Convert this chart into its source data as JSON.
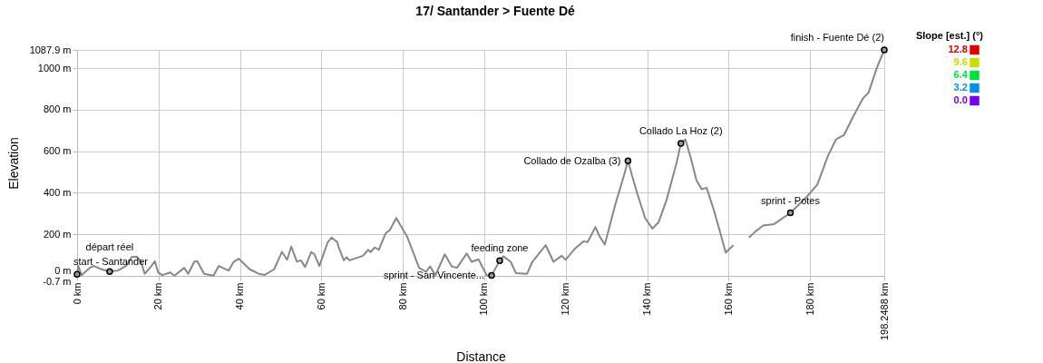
{
  "chart_data": {
    "type": "line",
    "title": "17/ Santander > Fuente Dé",
    "xlabel": "Distance",
    "ylabel": "Elevation",
    "clabel": "Slope [est.] (°)",
    "cticks": [
      {
        "value": 0,
        "label": "0.0"
      },
      3.2,
      6.4,
      9.6,
      12.8
    ],
    "colors": [
      "#7700ee",
      "#0090e8",
      "#00e040",
      "#c8e000",
      "#e00000"
    ],
    "xlim": [
      0,
      198.2488
    ],
    "ylim": [
      -0.7,
      1087.9
    ],
    "xticks": [
      {
        "value": 0,
        "label": "0 km"
      },
      {
        "value": 20,
        "label": "20 km"
      },
      {
        "value": 40,
        "label": "40 km"
      },
      {
        "value": 60,
        "label": "60 km"
      },
      {
        "value": 80,
        "label": "80 km"
      },
      {
        "value": 100,
        "label": "100 km"
      },
      {
        "value": 120,
        "label": "120 km"
      },
      {
        "value": 140,
        "label": "140 km"
      },
      {
        "value": 160,
        "label": "160 km"
      },
      {
        "value": 180,
        "label": "180 km"
      },
      {
        "value": 198.2488,
        "label": "198.2488 km"
      }
    ],
    "yticks": [
      {
        "value": -0.7,
        "label": "-0.7 m"
      },
      {
        "value": 0,
        "label": "0 m"
      },
      {
        "value": 200,
        "label": "200 m"
      },
      {
        "value": 400,
        "label": "400 m"
      },
      {
        "value": 600,
        "label": "600 m"
      },
      {
        "value": 800,
        "label": "800 m"
      },
      {
        "value": 1000,
        "label": "1000 m"
      },
      {
        "value": 1087.9,
        "label": "1087.9 m"
      }
    ],
    "grid": true,
    "series": [
      {
        "color": "#888888",
        "x": [
          0,
          0.3,
          1.1,
          3.1,
          4.1,
          6.0,
          8.0,
          10.0,
          12.0,
          13.4,
          14.7,
          15.7,
          16.6,
          17.9,
          19.1,
          19.9,
          20.9,
          22.9,
          23.9,
          26.3,
          27.3,
          28.8,
          29.5,
          31.2,
          33.5,
          34.8,
          37.2,
          38.5,
          39.7,
          42.4,
          44.7,
          46.1,
          48.4,
          50.3,
          51.6,
          52.6,
          54.0,
          55.0,
          56.0,
          57.5,
          58.3,
          59.5,
          61.5,
          62.5,
          63.9,
          64.2,
          65.5,
          66.2,
          66.9,
          70.2,
          71.5,
          72.1,
          73.1,
          74.1,
          75.8,
          76.8,
          78.4,
          80.1,
          81.1,
          84.0,
          85.7,
          86.7,
          88.0,
          90.3,
          92.0,
          93.3,
          95.7,
          96.9,
          98.6,
          100.6,
          101.8,
          103.8,
          104.7,
          106.5,
          107.8,
          110.5,
          111.8,
          115.1,
          117.0,
          119.0,
          120.0,
          122.4,
          124.4,
          125.4,
          127.3,
          128.3,
          129.6,
          132.3,
          134.3,
          135.3,
          136.3,
          137.6,
          139.5,
          141.3,
          142.8,
          144.8,
          147.2,
          148.3,
          149.4,
          150.8,
          152.1,
          153.4,
          154.6,
          156.3,
          158.0,
          159.3,
          160.0,
          161.2,
          163.0,
          165.0,
          166.6,
          168.5,
          171.2,
          175.2,
          179.2,
          181.8,
          184.4,
          186.4,
          188.4,
          190.4,
          193.0,
          194.4,
          196.4,
          198.2488
        ],
        "values": [
          9,
          47,
          3,
          38,
          47,
          31,
          20,
          25,
          47,
          90,
          92,
          68,
          9,
          38,
          70,
          16,
          3,
          16,
          0,
          38,
          9,
          68,
          70,
          9,
          0,
          47,
          25,
          68,
          82,
          31,
          9,
          4,
          31,
          115,
          77,
          140,
          68,
          74,
          42,
          114,
          103,
          47,
          159,
          184,
          162,
          140,
          74,
          89,
          74,
          96,
          125,
          114,
          136,
          125,
          205,
          220,
          278,
          220,
          187,
          38,
          19,
          45,
          2,
          103,
          45,
          38,
          107,
          67,
          79,
          2,
          2,
          72,
          94,
          67,
          12,
          9,
          67,
          147,
          67,
          96,
          77,
          133,
          166,
          162,
          235,
          191,
          150,
          351,
          482,
          555,
          482,
          395,
          278,
          227,
          257,
          366,
          541,
          638,
          657,
          562,
          461,
          417,
          424,
          322,
          205,
          111,
          125,
          147,
          null,
          184,
          213,
          242,
          249,
          303,
          380,
          439,
          577,
          657,
          679,
          759,
          854,
          883,
          1000,
          1087.9
        ]
      }
    ],
    "annotations": [
      {
        "text": "start - Santander",
        "x": 0,
        "y": 7
      },
      {
        "text": "départ réel",
        "x": 8.0,
        "y": 20
      },
      {
        "text": "sprint - San Vincente...",
        "x": 101.8,
        "y": 2
      },
      {
        "text": "feeding zone",
        "x": 103.8,
        "y": 72
      },
      {
        "text": "Collado de Ozalba (3)",
        "x": 135.3,
        "y": 553
      },
      {
        "text": "Collado La Hoz (2)",
        "x": 148.3,
        "y": 638
      },
      {
        "text": "sprint - Potes",
        "x": 175.2,
        "y": 303
      },
      {
        "text": "finish - Fuente Dé (2)",
        "x": 198.2488,
        "y": 1087.9
      }
    ]
  }
}
